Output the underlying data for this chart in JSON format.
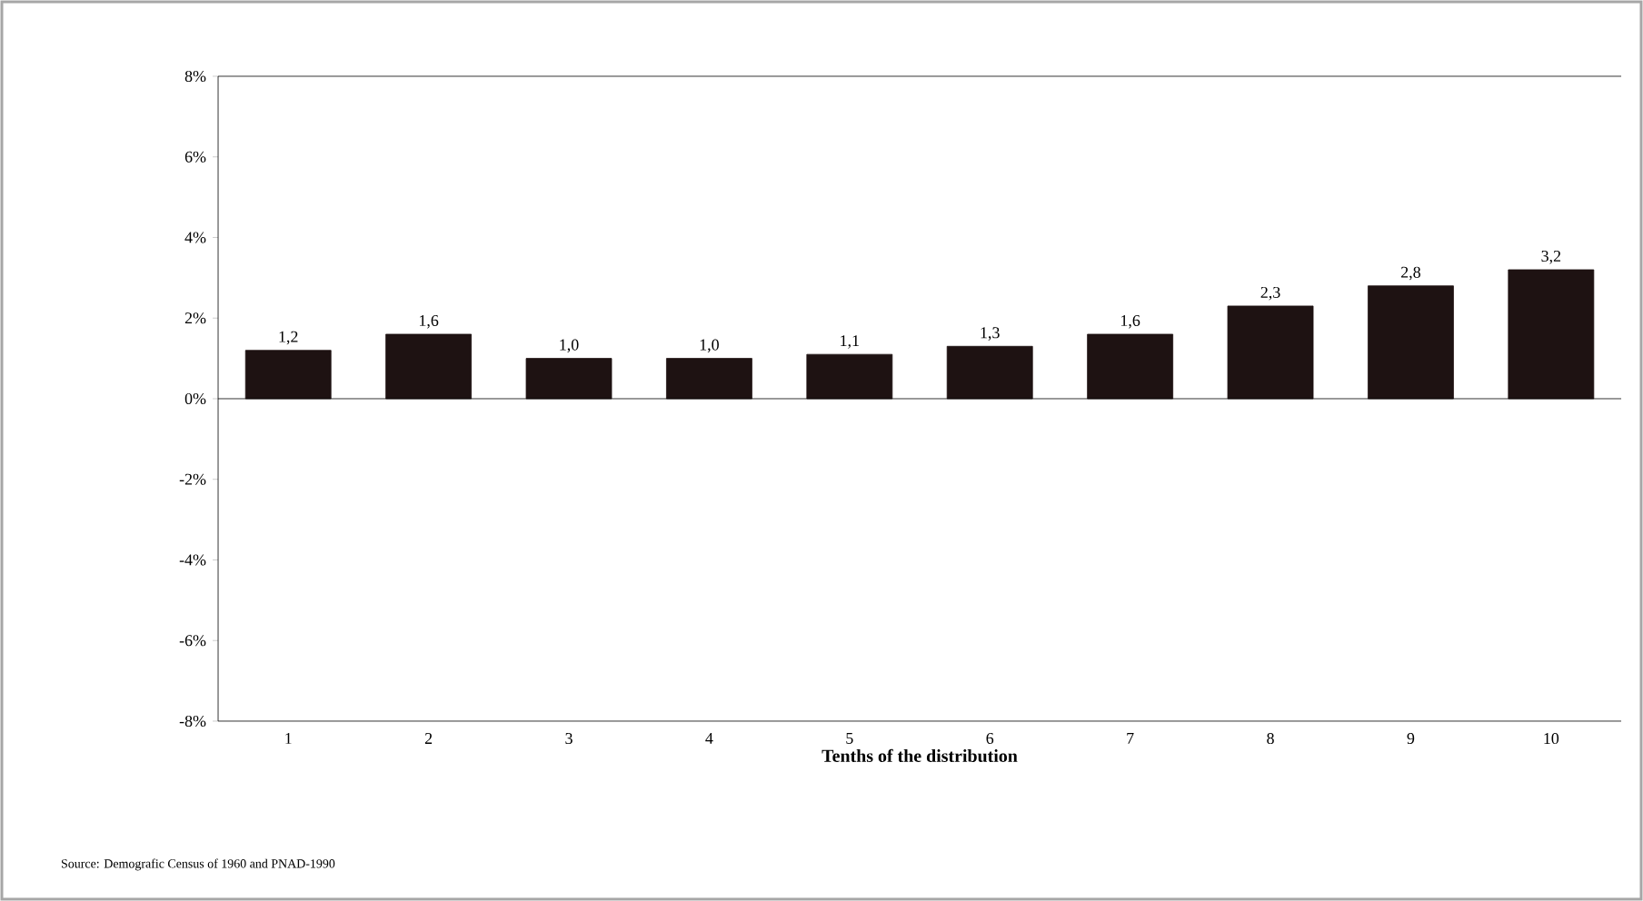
{
  "chart_data": {
    "type": "bar",
    "xlabel": "**Tenths of the distribution**",
    "categories": [
      "1",
      "2",
      "3",
      "4",
      "5",
      "6",
      "7",
      "8",
      "9",
      "10"
    ],
    "values": [
      1.2,
      1.6,
      1.0,
      1.0,
      1.1,
      1.3,
      1.6,
      2.3,
      2.8,
      3.2
    ],
    "value_labels": [
      "1,2",
      "1,6",
      "1,0",
      "1,0",
      "1,1",
      "1,3",
      "1,6",
      "2,3",
      "2,8",
      "3,2"
    ],
    "color": "#1e1212",
    "ylim": [
      -8,
      8
    ],
    "yticks": [
      {
        "value": -8,
        "label": "-8%"
      },
      {
        "value": -6,
        "label": "-6%"
      },
      {
        "value": -4,
        "label": "-4%"
      },
      {
        "value": -2,
        "label": "-2%"
      },
      {
        "value": 0,
        "label": "0%"
      },
      {
        "value": 2,
        "label": "2%"
      },
      {
        "value": 4,
        "label": "4%"
      },
      {
        "value": 6,
        "label": "6%"
      },
      {
        "value": 8,
        "label": "8%"
      }
    ],
    "annotations": [
      "Source: Demografic Census of 1960 and PNAD-1990"
    ]
  }
}
